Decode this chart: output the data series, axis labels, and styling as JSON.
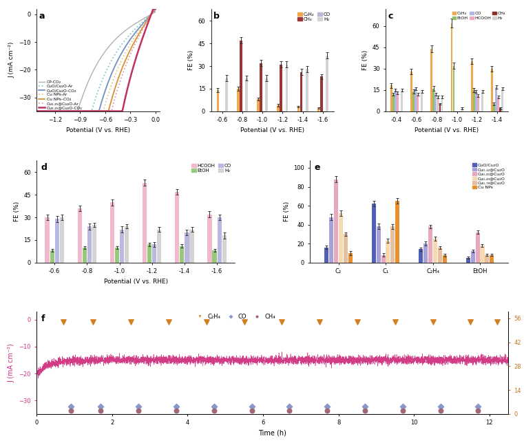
{
  "panel_a": {
    "xlabel": "Potential (V vs. RHE)",
    "ylabel": "J (mA cm⁻²)",
    "lines": [
      {
        "label": "CP-CO₂",
        "color": "#b0b0b0",
        "style": "solid",
        "lw": 1.0
      },
      {
        "label": "CuO/Cu₂O-Ar",
        "color": "#80c8c8",
        "style": "dotted",
        "lw": 1.3
      },
      {
        "label": "CuO/Cu₂O-CO₂",
        "color": "#7090c0",
        "style": "solid",
        "lw": 1.3
      },
      {
        "label": "Cu NPs-Ar",
        "color": "#e8c878",
        "style": "dotted",
        "lw": 1.3
      },
      {
        "label": "Cu NPs–CO₂",
        "color": "#d89030",
        "style": "solid",
        "lw": 1.3
      },
      {
        "label": "Cu₀.₂₅@Cu₂O-Ar",
        "color": "#d0a0b8",
        "style": "dotted",
        "lw": 1.3
      },
      {
        "label": "Cu₀.₂₅@Cu₂O-CO₂",
        "color": "#c03060",
        "style": "solid",
        "lw": 1.8
      }
    ]
  },
  "panel_b": {
    "xlabel": "Potential (V vs. RHE)",
    "ylabel": "FE (%)",
    "potentials": [
      "-0.6",
      "-0.8",
      "-1.0",
      "-1.2",
      "-1.4",
      "-1.6"
    ],
    "species": [
      "C₂H₄",
      "CH₄",
      "CO",
      "H₂"
    ],
    "colors": [
      "#f0a84a",
      "#9b3535",
      "#b8b8d8",
      "#d3d3d3"
    ],
    "data": {
      "C₂H₄": [
        14,
        15,
        8,
        4,
        3,
        2
      ],
      "CH₄": [
        0,
        47,
        32,
        31,
        26,
        23
      ],
      "CO": [
        0,
        0,
        0,
        0,
        0,
        0
      ],
      "H₂": [
        22,
        22,
        22,
        31,
        28,
        37
      ]
    },
    "errors": {
      "C₂H₄": [
        1.5,
        1.5,
        1,
        1,
        0.5,
        0.5
      ],
      "CH₄": [
        0,
        2,
        2,
        2,
        2,
        1.5
      ],
      "CO": [
        0,
        0,
        0,
        0,
        0,
        0
      ],
      "H₂": [
        2,
        1.5,
        2,
        2,
        2,
        2
      ]
    }
  },
  "panel_c": {
    "xlabel": "Potential (V vs. RHE)",
    "ylabel": "FE (%)",
    "potentials": [
      "-0.4",
      "-0.6",
      "-0.8",
      "-1.0",
      "-1.2",
      "-1.4"
    ],
    "species": [
      "C₂H₄",
      "EtOH",
      "CO",
      "HCOOH",
      "CH₄",
      "H₂"
    ],
    "colors": [
      "#f0a84a",
      "#90c06a",
      "#b0b8e0",
      "#f0a8c0",
      "#8b3030",
      "#d3d3d3"
    ],
    "data": {
      "C₂H₄": [
        18,
        28,
        44,
        62,
        35,
        30
      ],
      "EtOH": [
        12,
        14,
        16,
        32,
        15,
        5
      ],
      "CO": [
        15,
        16,
        12,
        0,
        14,
        17
      ],
      "HCOOH": [
        13,
        12,
        10,
        0,
        11,
        10
      ],
      "CH₄": [
        0,
        0,
        5,
        0,
        0,
        2
      ],
      "H₂": [
        15,
        14,
        10,
        2,
        14,
        16
      ]
    },
    "errors": {
      "C₂H₄": [
        1.5,
        2,
        2.5,
        3,
        2,
        2
      ],
      "EtOH": [
        1,
        1.5,
        1.5,
        2,
        1.5,
        1
      ],
      "CO": [
        1,
        1,
        1,
        0,
        1,
        1
      ],
      "HCOOH": [
        1,
        1,
        1,
        0,
        1,
        1
      ],
      "CH₄": [
        0,
        0,
        0.5,
        0,
        0,
        0.5
      ],
      "H₂": [
        1,
        1,
        1,
        0.5,
        1,
        1
      ]
    }
  },
  "panel_d": {
    "xlabel": "Potential (V vs. RHE)",
    "ylabel": "FE (%)",
    "potentials": [
      "-0.6",
      "-0.8",
      "-1.0",
      "-1.2",
      "-1.4",
      "-1.6"
    ],
    "species": [
      "HCOOH",
      "EtOH",
      "CO",
      "H₂"
    ],
    "colors": [
      "#f2b8cc",
      "#98c87a",
      "#b8b8e0",
      "#d3d3d3"
    ],
    "data": {
      "HCOOH": [
        30,
        36,
        40,
        53,
        47,
        32
      ],
      "EtOH": [
        8,
        10,
        10,
        12,
        11,
        8
      ],
      "CO": [
        29,
        24,
        22,
        12,
        20,
        30
      ],
      "H₂": [
        30,
        25,
        24,
        22,
        22,
        18
      ]
    },
    "errors": {
      "HCOOH": [
        2,
        2,
        2,
        2,
        2,
        2
      ],
      "EtOH": [
        1,
        1,
        1,
        1,
        1,
        1
      ],
      "CO": [
        2,
        2,
        2,
        1.5,
        2,
        2
      ],
      "H₂": [
        2,
        1.5,
        1.5,
        1.5,
        1.5,
        2
      ]
    }
  },
  "panel_e": {
    "ylabel": "FE (%)",
    "categories": [
      "C₂",
      "C₁",
      "C₂H₄",
      "EtOH"
    ],
    "series": [
      "CuO/Cu₂O",
      "Cu₀.₁₂@Cu₂O",
      "Cu₀.₂₅@Cu₂O",
      "Cu₀.₄₉@Cu₂O",
      "Cu₀.₇₈@Cu₂O",
      "Cu NPs"
    ],
    "colors": [
      "#5060b8",
      "#a8a0d8",
      "#e8a8c0",
      "#f8d8b0",
      "#e8c0a0",
      "#e89030"
    ],
    "data": {
      "C₂": [
        16,
        48,
        88,
        52,
        30,
        10
      ],
      "C₁": [
        62,
        38,
        8,
        23,
        38,
        65
      ],
      "C₂H₄": [
        14,
        20,
        38,
        25,
        16,
        8
      ],
      "EtOH": [
        5,
        12,
        32,
        18,
        8,
        8
      ]
    },
    "errors": {
      "C₂": [
        2,
        3,
        3,
        3,
        2,
        2
      ],
      "C₁": [
        3,
        3,
        2,
        2.5,
        2.5,
        3
      ],
      "C₂H₄": [
        2,
        2,
        2,
        2,
        1.5,
        1.5
      ],
      "EtOH": [
        1,
        1.5,
        2,
        1.5,
        1,
        1
      ]
    }
  },
  "panel_f": {
    "xlabel": "Time (h)",
    "ylabel_left": "J (mA cm⁻²)",
    "ylabel_right": "FE (%)",
    "current_color": "#d03080",
    "current_mean": -15,
    "current_noise": 0.8,
    "C2H4_y": 54,
    "CO_y": 4.5,
    "CH4_y": 2.0,
    "C2H4_color": "#d08020",
    "CO_color": "#8898c8",
    "CH4_color": "#a06878",
    "ylim_left": [
      -35,
      3
    ],
    "ylim_right": [
      0,
      60
    ],
    "yticks_left": [
      0,
      -10,
      -20,
      -30
    ],
    "yticks_right": [
      0,
      14,
      28,
      42,
      56
    ],
    "xticks": [
      0,
      2,
      4,
      6,
      8,
      10,
      12
    ]
  }
}
